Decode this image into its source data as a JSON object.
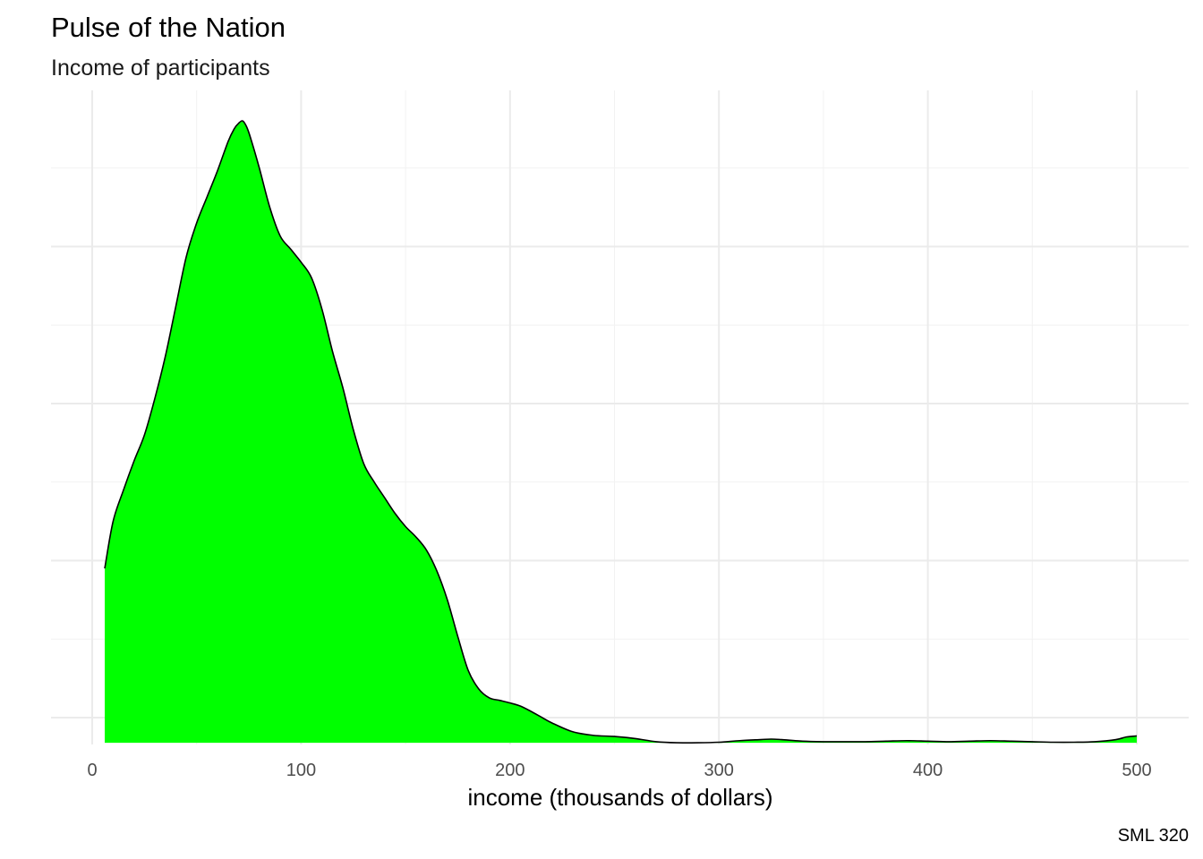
{
  "chart_data": {
    "type": "area",
    "title": "Pulse of the Nation",
    "subtitle": "Income of participants",
    "xlabel": "income (thousands of dollars)",
    "ylabel": "",
    "caption": "SML 320",
    "xlim": [
      0,
      500
    ],
    "x_ticks": [
      0,
      100,
      200,
      300,
      400,
      500
    ],
    "x_tick_labels": [
      "0",
      "100",
      "200",
      "300",
      "400",
      "500"
    ],
    "grid": true,
    "y_axis_labels_shown": false,
    "fill_color": "#00ff00",
    "line_color": "#000000",
    "series": [
      {
        "x": [
          6,
          10,
          15,
          20,
          25,
          30,
          35,
          40,
          45,
          50,
          55,
          60,
          65,
          68,
          70,
          72,
          74,
          76,
          80,
          85,
          90,
          95,
          100,
          105,
          110,
          115,
          120,
          125,
          130,
          135,
          140,
          145,
          150,
          155,
          160,
          165,
          170,
          175,
          180,
          185,
          190,
          195,
          200,
          205,
          210,
          215,
          220,
          230,
          240,
          250,
          260,
          270,
          280,
          290,
          300,
          310,
          320,
          325,
          330,
          340,
          350,
          360,
          370,
          380,
          390,
          400,
          410,
          420,
          430,
          440,
          450,
          460,
          470,
          480,
          490,
          495,
          500
        ],
        "y": [
          0.285,
          0.375,
          0.435,
          0.49,
          0.54,
          0.61,
          0.69,
          0.785,
          0.88,
          0.945,
          0.995,
          1.045,
          1.1,
          1.125,
          1.135,
          1.14,
          1.128,
          1.105,
          1.05,
          0.975,
          0.92,
          0.895,
          0.87,
          0.84,
          0.78,
          0.7,
          0.63,
          0.55,
          0.485,
          0.45,
          0.42,
          0.39,
          0.365,
          0.345,
          0.32,
          0.28,
          0.225,
          0.155,
          0.09,
          0.055,
          0.038,
          0.033,
          0.028,
          0.022,
          0.012,
          0.001,
          -0.01,
          -0.027,
          -0.034,
          -0.036,
          -0.04,
          -0.046,
          -0.048,
          -0.048,
          -0.047,
          -0.044,
          -0.042,
          -0.041,
          -0.042,
          -0.045,
          -0.046,
          -0.046,
          -0.046,
          -0.045,
          -0.044,
          -0.045,
          -0.046,
          -0.045,
          -0.044,
          -0.045,
          -0.046,
          -0.047,
          -0.047,
          -0.046,
          -0.042,
          -0.037,
          -0.035
        ]
      }
    ]
  }
}
